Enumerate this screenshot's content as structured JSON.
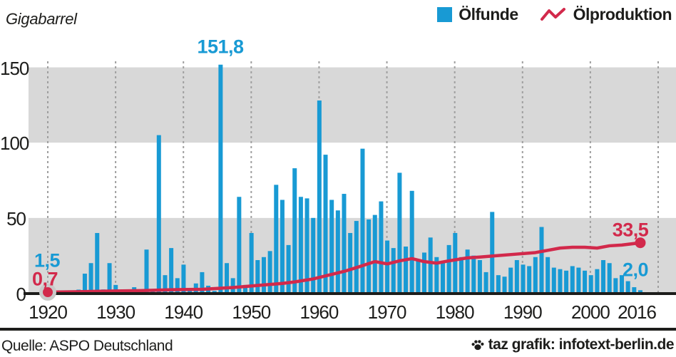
{
  "chart": {
    "unit_label": "Gigabarrel",
    "legend": {
      "bars_label": "Ölfunde",
      "line_label": "Ölproduktion"
    },
    "footer": {
      "source": "Quelle: ASPO Deutschland",
      "credit": "taz grafik: infotext-berlin.de"
    }
  },
  "colors": {
    "bars": "#189ad4",
    "line": "#d2294b",
    "band": "#d8d8d8",
    "grid": "#9f9f9f",
    "axis": "#1d1d1b",
    "halo": "#c9c9c9"
  },
  "chart_data": {
    "type": "bar+line",
    "title": "",
    "ylabel": "Gigabarrel",
    "x_range": [
      1920,
      2016
    ],
    "ylim": [
      0,
      160
    ],
    "grid": "vertical-dashed-per-decade",
    "legend_position": "top-right",
    "y_ticks": [
      150,
      100,
      50,
      0
    ],
    "x_tick_labels": [
      "1920",
      "1930",
      "1940",
      "1950",
      "1960",
      "1970",
      "1980",
      "1990",
      "2000",
      "2016"
    ],
    "gray_bands": [
      [
        0,
        50
      ],
      [
        100,
        150
      ]
    ],
    "series": [
      {
        "name": "Ölfunde",
        "type": "bar",
        "unit": "Gigabarrel",
        "start_year": 1920,
        "values": [
          1.5,
          0.5,
          0.8,
          1.0,
          1.6,
          2.4,
          13,
          20,
          40,
          2.5,
          20,
          5.5,
          1.6,
          1.3,
          4,
          1.0,
          29,
          1.0,
          105,
          12,
          30,
          10,
          19,
          3,
          6.5,
          14,
          5,
          1.5,
          151.8,
          20,
          10,
          64,
          5.5,
          40,
          22,
          24,
          28,
          72,
          62,
          32,
          83,
          64,
          63,
          50,
          128,
          92,
          62,
          55,
          66,
          40,
          48,
          96,
          49,
          52,
          61,
          35,
          30,
          80,
          31,
          68,
          22,
          27,
          37,
          24,
          20,
          32,
          40,
          24,
          29,
          25,
          22,
          14,
          54,
          12,
          11,
          17,
          22,
          19,
          18,
          24,
          44,
          24,
          17,
          16,
          15,
          18,
          17,
          15,
          12,
          16,
          22,
          20,
          10,
          12,
          8,
          4,
          2
        ]
      },
      {
        "name": "Ölproduktion",
        "type": "line",
        "unit": "Gigabarrel",
        "points": [
          [
            1920,
            0.7
          ],
          [
            1925,
            1.0
          ],
          [
            1930,
            1.4
          ],
          [
            1935,
            1.7
          ],
          [
            1940,
            2.3
          ],
          [
            1945,
            2.6
          ],
          [
            1950,
            3.8
          ],
          [
            1955,
            5.5
          ],
          [
            1958,
            6.5
          ],
          [
            1960,
            7.5
          ],
          [
            1963,
            9.5
          ],
          [
            1965,
            11.5
          ],
          [
            1968,
            14.5
          ],
          [
            1970,
            17
          ],
          [
            1973,
            21
          ],
          [
            1975,
            19.5
          ],
          [
            1977,
            21.5
          ],
          [
            1979,
            23
          ],
          [
            1981,
            21
          ],
          [
            1983,
            20
          ],
          [
            1985,
            21.5
          ],
          [
            1988,
            23.5
          ],
          [
            1990,
            24
          ],
          [
            1993,
            25
          ],
          [
            1996,
            26
          ],
          [
            1999,
            27
          ],
          [
            2001,
            28.5
          ],
          [
            2003,
            30
          ],
          [
            2005,
            30.5
          ],
          [
            2007,
            30.5
          ],
          [
            2009,
            30
          ],
          [
            2011,
            31.5
          ],
          [
            2013,
            32
          ],
          [
            2016,
            33.5
          ]
        ]
      }
    ],
    "annotations": {
      "discoveries_1920": "1,5",
      "production_1920": "0,7",
      "discoveries_peak_1948": "151,8",
      "production_2016": "33,5",
      "discoveries_2016": "2,0"
    }
  }
}
